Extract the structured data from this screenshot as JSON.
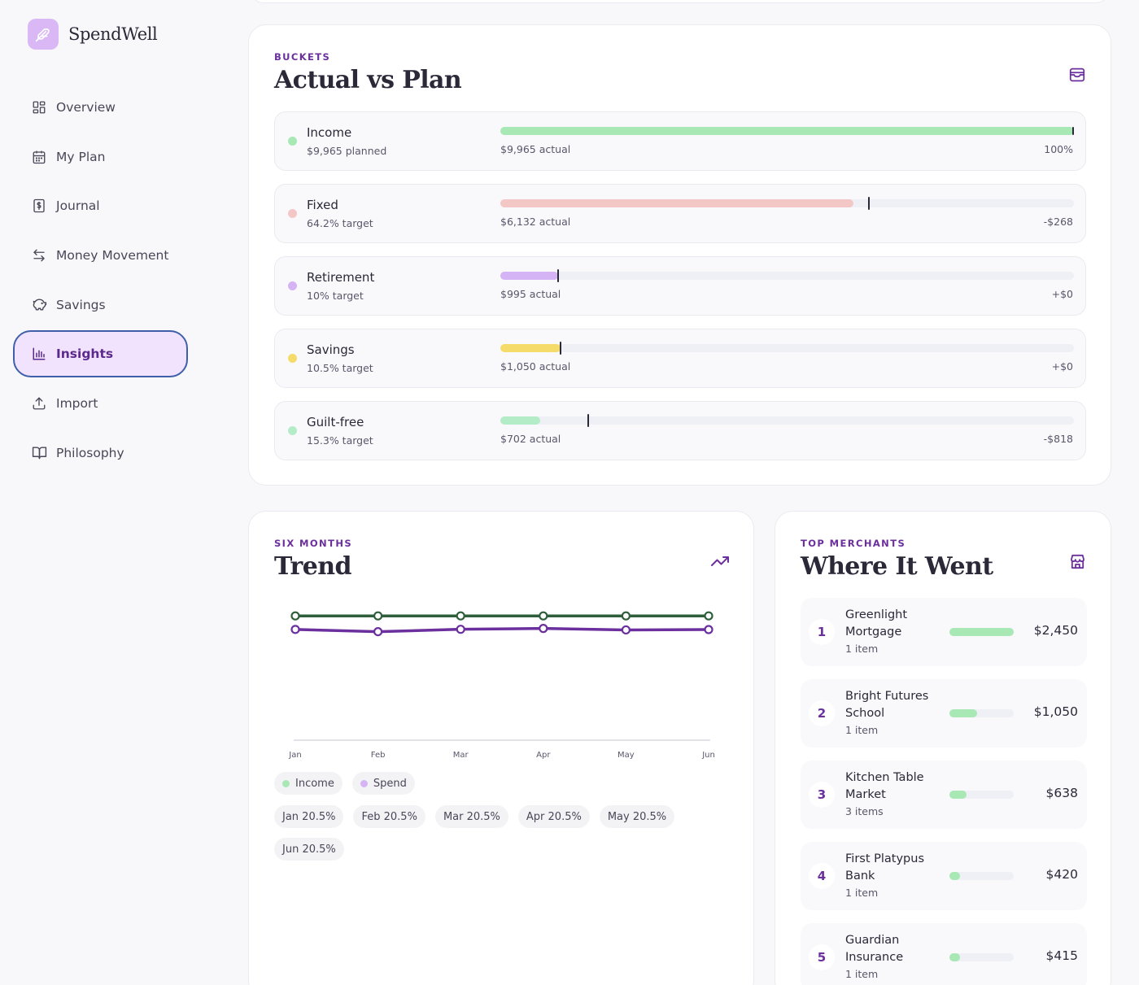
{
  "app": {
    "name": "SpendWell"
  },
  "nav": {
    "items": [
      {
        "label": "Overview",
        "icon": "grid-icon",
        "active": false
      },
      {
        "label": "My Plan",
        "icon": "calendar-icon",
        "active": false
      },
      {
        "label": "Journal",
        "icon": "receipt-icon",
        "active": false
      },
      {
        "label": "Money Movement",
        "icon": "transfer-icon",
        "active": false
      },
      {
        "label": "Savings",
        "icon": "piggy-bank-icon",
        "active": false
      },
      {
        "label": "Insights",
        "icon": "bar-chart-icon",
        "active": true
      },
      {
        "label": "Import",
        "icon": "upload-icon",
        "active": false
      },
      {
        "label": "Philosophy",
        "icon": "book-icon",
        "active": false
      }
    ]
  },
  "buckets": {
    "eyebrow": "BUCKETS",
    "title": "Actual vs Plan",
    "icon": "wallet-icon",
    "rows": [
      {
        "name": "Income",
        "sub": "$9,965 planned",
        "actual": "$9,965 actual",
        "delta": "100%",
        "color": "#a8e8b5",
        "fill_ratio": 1.0,
        "target_ratio": null
      },
      {
        "name": "Fixed",
        "sub": "64.2% target",
        "actual": "$6,132 actual",
        "delta": "-$268",
        "color": "#f4c7c7",
        "fill_ratio": 0.615,
        "target_ratio": 0.642
      },
      {
        "name": "Retirement",
        "sub": "10% target",
        "actual": "$995 actual",
        "delta": "+$0",
        "color": "#d4b4f4",
        "fill_ratio": 0.1,
        "target_ratio": 0.1
      },
      {
        "name": "Savings",
        "sub": "10.5% target",
        "actual": "$1,050 actual",
        "delta": "+$0",
        "color": "#f5dc6a",
        "fill_ratio": 0.105,
        "target_ratio": 0.105
      },
      {
        "name": "Guilt-free",
        "sub": "15.3% target",
        "actual": "$702 actual",
        "delta": "-$818",
        "color": "#b5ecc8",
        "fill_ratio": 0.07,
        "target_ratio": 0.153
      }
    ]
  },
  "trend": {
    "eyebrow": "SIX MONTHS",
    "title": "Trend",
    "icon": "trending-up-icon",
    "legend": [
      {
        "label": "Income",
        "color": "#a8e8b5"
      },
      {
        "label": "Spend",
        "color": "#d4b4f4"
      }
    ],
    "rate_chips": [
      "Jan 20.5%",
      "Feb 20.5%",
      "Mar 20.5%",
      "Apr 20.5%",
      "May 20.5%",
      "Jun 20.5%"
    ]
  },
  "chart_data": {
    "type": "line",
    "categories": [
      "Jan",
      "Feb",
      "Mar",
      "Apr",
      "May",
      "Jun"
    ],
    "series": [
      {
        "name": "Income",
        "color": "#2f5e3a",
        "values": [
          9965,
          9965,
          9965,
          9965,
          9965,
          9965
        ]
      },
      {
        "name": "Spend",
        "color": "#6b2f9e",
        "values": [
          8880,
          8700,
          8890,
          8960,
          8840,
          8870
        ]
      }
    ],
    "ylim": [
      0,
      10500
    ],
    "grid": false,
    "legend_position": "bottom"
  },
  "merchants": {
    "eyebrow": "TOP MERCHANTS",
    "title": "Where It Went",
    "icon": "store-icon",
    "items": [
      {
        "rank": "1",
        "name": "Greenlight Mortgage",
        "count": "1 item",
        "amount": "$2,450",
        "ratio": 1.0
      },
      {
        "rank": "2",
        "name": "Bright Futures School",
        "count": "1 item",
        "amount": "$1,050",
        "ratio": 0.43
      },
      {
        "rank": "3",
        "name": "Kitchen Table Market",
        "count": "3 items",
        "amount": "$638",
        "ratio": 0.26
      },
      {
        "rank": "4",
        "name": "First Platypus Bank",
        "count": "1 item",
        "amount": "$420",
        "ratio": 0.17
      },
      {
        "rank": "5",
        "name": "Guardian Insurance",
        "count": "1 item",
        "amount": "$415",
        "ratio": 0.17
      }
    ]
  }
}
